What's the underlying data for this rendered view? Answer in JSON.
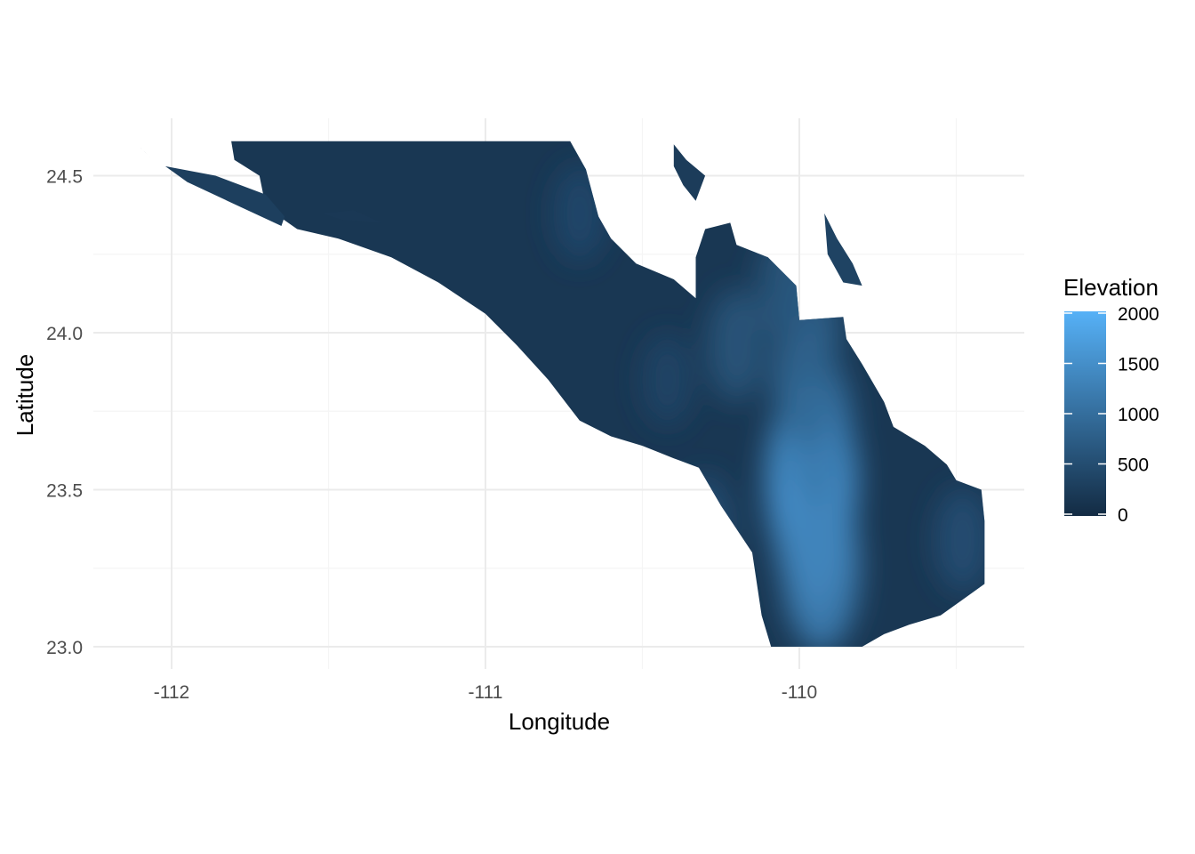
{
  "chart_data": {
    "type": "heatmap",
    "subtype": "elevation raster map",
    "xlabel": "Longitude",
    "ylabel": "Latitude",
    "xlim": [
      -112.25,
      -109.3
    ],
    "ylim": [
      22.93,
      24.64
    ],
    "x_ticks": [
      {
        "value": -112,
        "label": "-112"
      },
      {
        "value": -111,
        "label": "-111"
      },
      {
        "value": -110,
        "label": "-110"
      }
    ],
    "x_minor_ticks": [
      -111.5,
      -110.5,
      -109.5
    ],
    "y_ticks": [
      {
        "value": 23.0,
        "label": "23.0"
      },
      {
        "value": 23.5,
        "label": "23.5"
      },
      {
        "value": 24.0,
        "label": "24.0"
      },
      {
        "value": 24.5,
        "label": "24.5"
      }
    ],
    "y_minor_ticks": [
      23.25,
      23.75,
      24.25
    ],
    "grid": true,
    "legend": {
      "title": "Elevation",
      "position": "right",
      "range": [
        0,
        2000
      ],
      "breaks": [
        {
          "value": 2000,
          "label": "2000"
        },
        {
          "value": 1500,
          "label": "1500"
        },
        {
          "value": 1000,
          "label": "1000"
        },
        {
          "value": 500,
          "label": "500"
        },
        {
          "value": 0,
          "label": "0"
        }
      ],
      "low_color": "#132b43",
      "high_color": "#56b1f7"
    },
    "colors": {
      "low": "#132b43",
      "high": "#56b1f7",
      "grid_major": "#ebebeb",
      "grid_minor": "#f5f5f5"
    },
    "land_outline": [
      [
        -111.81,
        24.61
      ],
      [
        -110.73,
        24.61
      ],
      [
        -110.68,
        24.52
      ],
      [
        -110.64,
        24.37
      ],
      [
        -110.6,
        24.3
      ],
      [
        -110.52,
        24.22
      ],
      [
        -110.4,
        24.17
      ],
      [
        -110.33,
        24.11
      ],
      [
        -110.33,
        24.24
      ],
      [
        -110.3,
        24.33
      ],
      [
        -110.22,
        24.35
      ],
      [
        -110.2,
        24.28
      ],
      [
        -110.1,
        24.24
      ],
      [
        -110.01,
        24.15
      ],
      [
        -110.0,
        24.04
      ],
      [
        -109.86,
        24.05
      ],
      [
        -109.85,
        23.98
      ],
      [
        -109.8,
        23.9
      ],
      [
        -109.73,
        23.78
      ],
      [
        -109.7,
        23.7
      ],
      [
        -109.6,
        23.64
      ],
      [
        -109.53,
        23.58
      ],
      [
        -109.5,
        23.53
      ],
      [
        -109.42,
        23.5
      ],
      [
        -109.41,
        23.4
      ],
      [
        -109.41,
        23.2
      ],
      [
        -109.48,
        23.15
      ],
      [
        -109.55,
        23.1
      ],
      [
        -109.65,
        23.07
      ],
      [
        -109.73,
        23.04
      ],
      [
        -109.8,
        23.0
      ],
      [
        -110.09,
        23.0
      ],
      [
        -110.12,
        23.1
      ],
      [
        -110.15,
        23.3
      ],
      [
        -110.25,
        23.45
      ],
      [
        -110.32,
        23.57
      ],
      [
        -110.4,
        23.6
      ],
      [
        -110.5,
        23.64
      ],
      [
        -110.6,
        23.67
      ],
      [
        -110.7,
        23.72
      ],
      [
        -110.8,
        23.85
      ],
      [
        -110.9,
        23.96
      ],
      [
        -111.0,
        24.06
      ],
      [
        -111.15,
        24.16
      ],
      [
        -111.3,
        24.24
      ],
      [
        -111.47,
        24.3
      ],
      [
        -111.6,
        24.33
      ],
      [
        -111.7,
        24.4
      ],
      [
        -111.72,
        24.5
      ],
      [
        -111.8,
        24.55
      ]
    ],
    "ridge_highlights": [
      {
        "lon": -109.96,
        "lat": 23.53,
        "elevation": 1750
      },
      {
        "lon": -109.95,
        "lat": 23.4,
        "elevation": 1450
      },
      {
        "lon": -109.93,
        "lat": 23.25,
        "elevation": 1300
      },
      {
        "lon": -109.95,
        "lat": 23.7,
        "elevation": 1150
      },
      {
        "lon": -109.98,
        "lat": 23.85,
        "elevation": 900
      },
      {
        "lon": -109.97,
        "lat": 24.02,
        "elevation": 800
      },
      {
        "lon": -110.04,
        "lat": 24.15,
        "elevation": 650
      },
      {
        "lon": -110.2,
        "lat": 23.96,
        "elevation": 650
      },
      {
        "lon": -110.3,
        "lat": 23.38,
        "elevation": 550
      },
      {
        "lon": -109.48,
        "lat": 23.34,
        "elevation": 550
      },
      {
        "lon": -110.7,
        "lat": 24.38,
        "elevation": 450
      },
      {
        "lon": -110.42,
        "lat": 23.85,
        "elevation": 400
      }
    ],
    "islands": [
      {
        "name": "",
        "elevation": 220,
        "outline": [
          [
            -112.11,
            24.6
          ],
          [
            -112.07,
            24.56
          ],
          [
            -112.05,
            24.54
          ],
          [
            -112.08,
            24.57
          ]
        ]
      },
      {
        "name": "",
        "elevation": 300,
        "outline": [
          [
            -112.02,
            24.53
          ],
          [
            -111.86,
            24.5
          ],
          [
            -111.7,
            24.44
          ],
          [
            -111.64,
            24.37
          ],
          [
            -111.65,
            24.34
          ],
          [
            -111.78,
            24.4
          ],
          [
            -111.95,
            24.48
          ]
        ]
      },
      {
        "name": "",
        "elevation": 200,
        "outline": [
          [
            -111.52,
            24.38
          ],
          [
            -111.42,
            24.39
          ],
          [
            -111.33,
            24.35
          ],
          [
            -111.46,
            24.36
          ]
        ]
      },
      {
        "name": "",
        "elevation": 260,
        "outline": [
          [
            -110.4,
            24.6
          ],
          [
            -110.36,
            24.55
          ],
          [
            -110.3,
            24.5
          ],
          [
            -110.33,
            24.42
          ],
          [
            -110.37,
            24.47
          ],
          [
            -110.4,
            24.53
          ]
        ]
      },
      {
        "name": "",
        "elevation": 360,
        "outline": [
          [
            -109.92,
            24.38
          ],
          [
            -109.88,
            24.3
          ],
          [
            -109.83,
            24.22
          ],
          [
            -109.8,
            24.15
          ],
          [
            -109.86,
            24.16
          ],
          [
            -109.91,
            24.25
          ]
        ]
      }
    ]
  }
}
